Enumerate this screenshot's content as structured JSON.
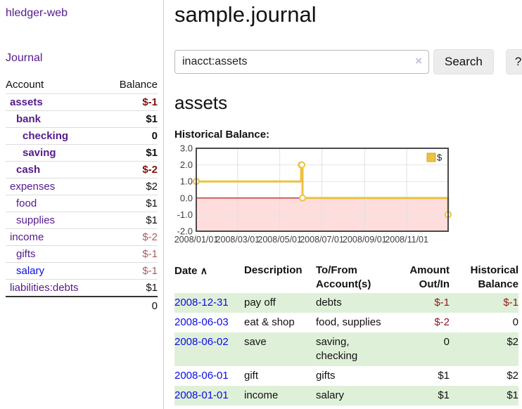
{
  "app": {
    "brand": "hledger-web"
  },
  "nav": {
    "journal_label": "Journal"
  },
  "sidebar": {
    "header": {
      "account": "Account",
      "balance": "Balance"
    },
    "accounts": [
      {
        "name": "assets",
        "level": 0,
        "bold": true,
        "balance": "$-1",
        "tone": "neg-strong",
        "link": "visited"
      },
      {
        "name": "bank",
        "level": 1,
        "bold": true,
        "balance": "$1",
        "tone": "",
        "link": "visited"
      },
      {
        "name": "checking",
        "level": 2,
        "bold": true,
        "balance": "0",
        "tone": "",
        "link": "visited"
      },
      {
        "name": "saving",
        "level": 2,
        "bold": true,
        "balance": "$1",
        "tone": "",
        "link": "visited"
      },
      {
        "name": "cash",
        "level": 1,
        "bold": true,
        "balance": "$-2",
        "tone": "neg-strong",
        "link": "visited"
      },
      {
        "name": "expenses",
        "level": 0,
        "bold": false,
        "balance": "$2",
        "tone": "",
        "link": "visited"
      },
      {
        "name": "food",
        "level": 1,
        "bold": false,
        "balance": "$1",
        "tone": "",
        "link": "visited"
      },
      {
        "name": "supplies",
        "level": 1,
        "bold": false,
        "balance": "$1",
        "tone": "",
        "link": "visited"
      },
      {
        "name": "income",
        "level": 0,
        "bold": false,
        "balance": "$-2",
        "tone": "neg-muted",
        "link": "visited"
      },
      {
        "name": "gifts",
        "level": 1,
        "bold": false,
        "balance": "$-1",
        "tone": "neg-muted",
        "link": "visited"
      },
      {
        "name": "salary",
        "level": 1,
        "bold": false,
        "balance": "$-1",
        "tone": "neg-muted",
        "link": "unvisited"
      },
      {
        "name": "liabilities:debts",
        "level": 0,
        "bold": false,
        "balance": "$1",
        "tone": "",
        "link": "visited"
      }
    ],
    "total": "0"
  },
  "main": {
    "title": "sample.journal",
    "search": {
      "value": "inacct:assets",
      "clear_icon": "×",
      "button_label": "Search",
      "help_label": "?"
    },
    "account_heading": "assets",
    "chart_label": "Historical Balance:"
  },
  "chart_data": {
    "type": "line",
    "title": "Historical Balance",
    "step": true,
    "xlim": [
      "2008-01-01",
      "2008-12-31"
    ],
    "ylim": [
      -2,
      3
    ],
    "y_ticks": [
      3.0,
      2.0,
      1.0,
      0.0,
      -1.0,
      -2.0
    ],
    "x_ticks": [
      {
        "label": "2008/01/01",
        "date": "2008-01-01"
      },
      {
        "label": "2008/03/01",
        "date": "2008-03-01"
      },
      {
        "label": "2008/05/01",
        "date": "2008-05-01"
      },
      {
        "label": "2008/07/01",
        "date": "2008-07-01"
      },
      {
        "label": "2008/09/01",
        "date": "2008-09-01"
      },
      {
        "label": "2008/11/01",
        "date": "2008-11-01"
      }
    ],
    "series": [
      {
        "name": "$",
        "color": "#edc240",
        "points": [
          {
            "date": "2008-01-01",
            "value": 1
          },
          {
            "date": "2008-06-01",
            "value": 2
          },
          {
            "date": "2008-06-02",
            "value": 2
          },
          {
            "date": "2008-06-03",
            "value": 0
          },
          {
            "date": "2008-12-31",
            "value": -1
          }
        ]
      }
    ],
    "legend": {
      "label": "$",
      "position": "top-right"
    },
    "grid": true,
    "negative_region_color": "#ffdddd",
    "zero_line_color": "#a00000"
  },
  "transactions": {
    "headers": {
      "date": "Date",
      "sort_indicator": "∧",
      "description": "Description",
      "accounts": "To/From Account(s)",
      "amount": "Amount Out/In",
      "balance": "Historical Balance"
    },
    "rows": [
      {
        "date": "2008-12-31",
        "description": "pay off",
        "accounts": "debts",
        "amount": "$-1",
        "amount_neg": true,
        "balance": "$-1",
        "balance_neg": true,
        "shade": true
      },
      {
        "date": "2008-06-03",
        "description": "eat & shop",
        "accounts": "food, supplies",
        "amount": "$-2",
        "amount_neg": true,
        "balance": "0",
        "balance_neg": false,
        "shade": false
      },
      {
        "date": "2008-06-02",
        "description": "save",
        "accounts": "saving, checking",
        "amount": "0",
        "amount_neg": false,
        "balance": "$2",
        "balance_neg": false,
        "shade": true
      },
      {
        "date": "2008-06-01",
        "description": "gift",
        "accounts": "gifts",
        "amount": "$1",
        "amount_neg": false,
        "balance": "$2",
        "balance_neg": false,
        "shade": false
      },
      {
        "date": "2008-01-01",
        "description": "income",
        "accounts": "salary",
        "amount": "$1",
        "amount_neg": false,
        "balance": "$1",
        "balance_neg": false,
        "shade": true
      }
    ]
  },
  "colors": {
    "link_visited_purple": "#551a8b",
    "link_unvisited_blue": "#0b0be8",
    "negative_strong": "#7f1010",
    "negative_muted": "#ab5e5e",
    "register_negative": "#8c1818",
    "row_shade_green": "#dff0d8",
    "chart_line_gold": "#edc240",
    "chart_negative_fill": "#ffdddd",
    "chart_zero_line": "#a00000"
  }
}
